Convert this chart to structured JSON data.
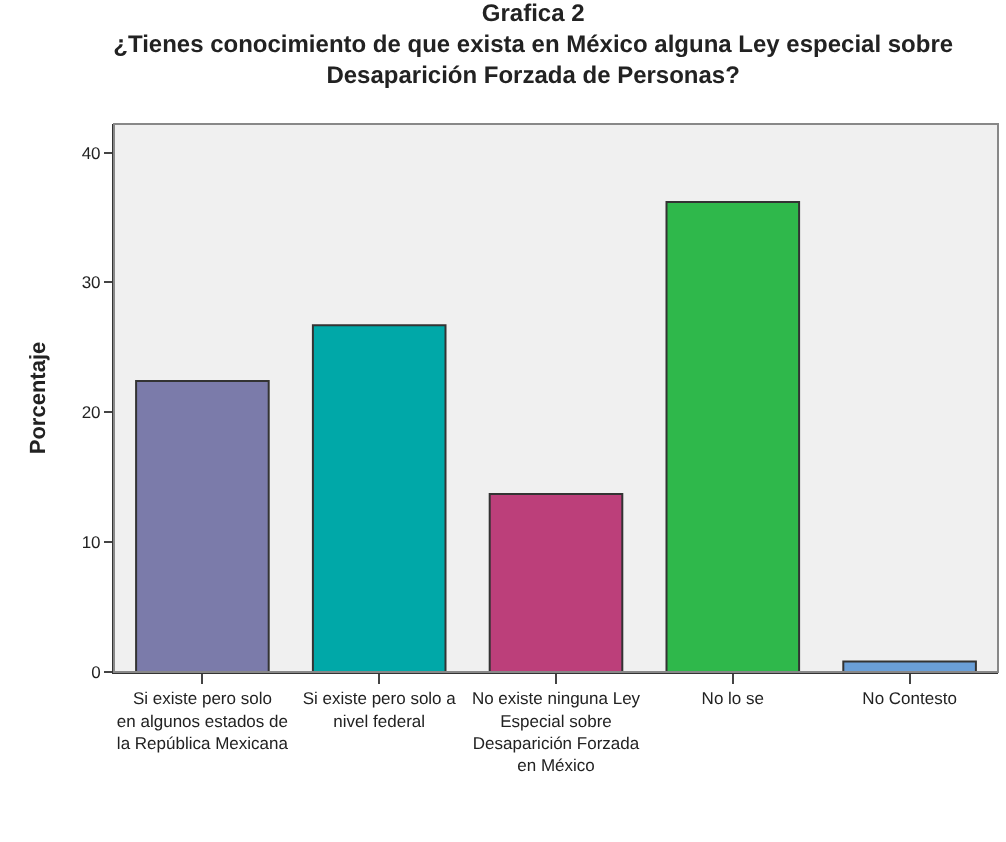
{
  "chart_data": {
    "type": "bar",
    "title": "Grafica 2\n¿Tienes conocimiento de que exista en México alguna Ley especial sobre Desaparición Forzada de Personas?",
    "ylabel": "Porcentaje",
    "categories": [
      "Si existe pero solo en algunos estados de la República Mexicana",
      "Si existe pero solo a nivel federal",
      "No existe ninguna Ley Especial sobre Desaparición Forzada en México",
      "No lo se",
      "No Contesto"
    ],
    "values": [
      22.4,
      26.7,
      13.7,
      36.2,
      0.8
    ],
    "colors": [
      "#7b7baa",
      "#00a8a8",
      "#bc3f7a",
      "#2fb84b",
      "#6a9fd8"
    ],
    "ylim": [
      0,
      42.2
    ],
    "yticks": [
      0,
      10,
      20,
      30,
      40
    ],
    "grid": false
  }
}
